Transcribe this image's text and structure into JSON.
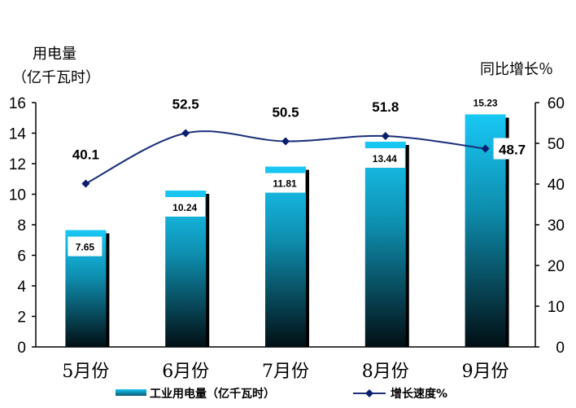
{
  "chart_data": {
    "type": "bar+line",
    "categories": [
      "5月份",
      "6月份",
      "7月份",
      "8月份",
      "9月份"
    ],
    "series": [
      {
        "name": "工业用电量（亿千瓦时）",
        "type": "bar",
        "axis": "left",
        "values": [
          7.65,
          10.24,
          11.81,
          13.44,
          15.23
        ],
        "labels": [
          "7.65",
          "10.24",
          "11.81",
          "13.44",
          "15.23"
        ]
      },
      {
        "name": "增长速度%",
        "type": "line",
        "axis": "right",
        "values": [
          40.1,
          52.5,
          50.5,
          51.8,
          48.7
        ],
        "labels": [
          "40.1",
          "52.5",
          "50.5",
          "51.8",
          "48.7"
        ]
      }
    ],
    "y_left": {
      "label_line1": "用电量",
      "label_line2": "（亿千瓦时）",
      "range": [
        0,
        16
      ],
      "ticks": [
        "0",
        "2",
        "4",
        "6",
        "8",
        "10",
        "12",
        "14",
        "16"
      ]
    },
    "y_right": {
      "label": "同比增长％",
      "range": [
        0,
        60
      ],
      "ticks": [
        "0",
        "10",
        "20",
        "30",
        "40",
        "50",
        "60"
      ]
    },
    "legend_position": "bottom",
    "grid": false,
    "colors": {
      "bar_top": "#19c8f5",
      "bar_mid": "#0d7f9a",
      "bar_bottom": "#03161c",
      "bar_shadow": "#000000",
      "line": "#1b2f7a",
      "marker": "#0a1e6e"
    }
  }
}
